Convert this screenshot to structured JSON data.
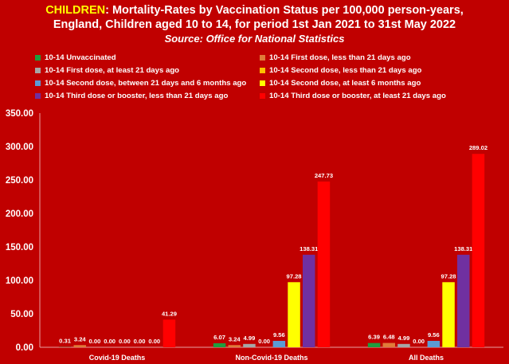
{
  "title": {
    "highlight": "CHILDREN",
    "line1": ": Mortality-Rates by Vaccination Status per 100,000 person-years,",
    "line2": "England, Children aged 10 to 14, for period 1st Jan 2021 to 31st May 2022",
    "source": "Source: Office for National Statistics"
  },
  "chart_data": {
    "type": "bar",
    "categories": [
      "Covid-19 Deaths",
      "Non-Covid-19 Deaths",
      "All Deaths"
    ],
    "ylim": [
      0,
      350
    ],
    "yticks": [
      "0.00",
      "50.00",
      "100.00",
      "150.00",
      "200.00",
      "250.00",
      "300.00",
      "350.00"
    ],
    "grid": false,
    "legend_position": "top",
    "series": [
      {
        "name": "10-14 Unvaccinated",
        "color": "#1e9e3e",
        "values": [
          0.31,
          6.07,
          6.39
        ],
        "labels": [
          "0.31",
          "6.07",
          "6.39"
        ]
      },
      {
        "name": "10-14 First dose, less than 21 days ago",
        "color": "#e07b39",
        "values": [
          3.24,
          3.24,
          6.48
        ],
        "labels": [
          "3.24",
          "3.24",
          "6.48"
        ]
      },
      {
        "name": "10-14 First dose, at least 21 days ago",
        "color": "#a6a6a6",
        "values": [
          0.0,
          4.99,
          4.99
        ],
        "labels": [
          "0.00",
          "4.99",
          "4.99"
        ]
      },
      {
        "name": "10-14 Second dose, less than 21 days ago",
        "color": "#ffc000",
        "values": [
          0.0,
          0.0,
          0.0
        ],
        "labels": [
          "0.00",
          "0.00",
          "0.00"
        ]
      },
      {
        "name": "10-14 Second dose, between 21 days and 6 months ago",
        "color": "#5b9bd5",
        "values": [
          0.0,
          9.56,
          9.56
        ],
        "labels": [
          "0.00",
          "9.56",
          "9.56"
        ]
      },
      {
        "name": "10-14 Second dose, at least 6 months ago",
        "color": "#ffff00",
        "values": [
          0.0,
          97.28,
          97.28
        ],
        "labels": [
          "0.00",
          "97.28",
          "97.28"
        ]
      },
      {
        "name": "10-14 Third dose or booster, less than 21 days ago",
        "color": "#7030a0",
        "values": [
          0.0,
          138.31,
          138.31
        ],
        "labels": [
          "0.00",
          "138.31",
          "138.31"
        ]
      },
      {
        "name": "10-14 Third dose or booster, at least 21 days ago",
        "color": "#ff0000",
        "values": [
          41.29,
          247.73,
          289.02
        ],
        "labels": [
          "41.29",
          "247.73",
          "289.02"
        ]
      }
    ]
  }
}
